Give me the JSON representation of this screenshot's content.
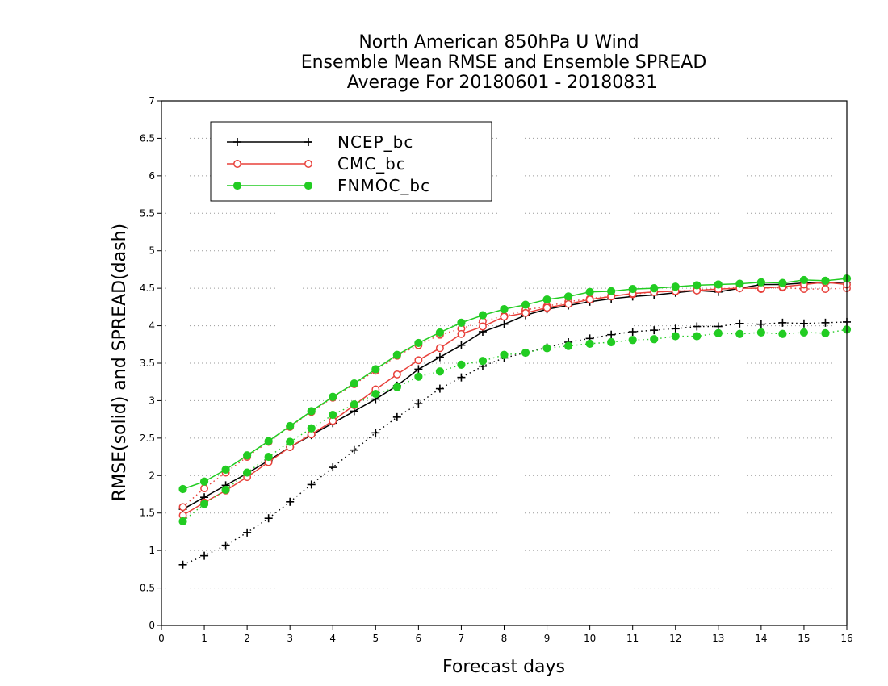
{
  "chart_data": {
    "type": "line",
    "title": [
      "North American 850hPa U Wind",
      "Ensemble Mean RMSE and Ensemble SPREAD",
      "Average For 20180601 - 20180831"
    ],
    "xlabel": "Forecast days",
    "ylabel": "RMSE(solid) and SPREAD(dash)",
    "xlim": [
      0,
      16
    ],
    "ylim": [
      0,
      7
    ],
    "xticks": [
      "0",
      "1",
      "2",
      "3",
      "4",
      "5",
      "6",
      "7",
      "8",
      "9",
      "10",
      "11",
      "12",
      "13",
      "14",
      "15",
      "16"
    ],
    "yticks": [
      "0",
      "0.5",
      "1",
      "1.5",
      "2",
      "2.5",
      "3",
      "3.5",
      "4",
      "4.5",
      "5",
      "5.5",
      "6",
      "6.5",
      "7"
    ],
    "grid": "horizontal dotted",
    "legend_position": "top-left",
    "x": [
      0.5,
      1,
      1.5,
      2,
      2.5,
      3,
      3.5,
      4,
      4.5,
      5,
      5.5,
      6,
      6.5,
      7,
      7.5,
      8,
      8.5,
      9,
      9.5,
      10,
      10.5,
      11,
      11.5,
      12,
      12.5,
      13,
      13.5,
      14,
      14.5,
      15,
      15.5,
      16
    ],
    "series": [
      {
        "name": "NCEP_bc",
        "color": "#000000",
        "marker": "plus",
        "rmse": [
          1.55,
          1.71,
          1.87,
          2.03,
          2.2,
          2.38,
          2.54,
          2.7,
          2.86,
          3.02,
          3.2,
          3.42,
          3.58,
          3.74,
          3.92,
          4.02,
          4.14,
          4.22,
          4.27,
          4.32,
          4.36,
          4.39,
          4.41,
          4.44,
          4.47,
          4.45,
          4.5,
          4.55,
          4.55,
          4.57,
          4.57,
          4.58
        ],
        "spread": [
          0.81,
          0.93,
          1.07,
          1.24,
          1.43,
          1.65,
          1.88,
          2.11,
          2.34,
          2.57,
          2.78,
          2.96,
          3.16,
          3.31,
          3.46,
          3.57,
          3.64,
          3.71,
          3.78,
          3.83,
          3.88,
          3.92,
          3.94,
          3.96,
          3.99,
          3.99,
          4.03,
          4.02,
          4.04,
          4.03,
          4.04,
          4.05
        ]
      },
      {
        "name": "CMC_bc",
        "color": "#e8403a",
        "marker": "open-circle",
        "rmse": [
          1.47,
          1.64,
          1.8,
          1.98,
          2.18,
          2.38,
          2.55,
          2.73,
          2.94,
          3.15,
          3.35,
          3.54,
          3.7,
          3.89,
          3.99,
          4.12,
          4.17,
          4.24,
          4.29,
          4.35,
          4.39,
          4.43,
          4.45,
          4.46,
          4.47,
          4.49,
          4.5,
          4.5,
          4.52,
          4.55,
          4.58,
          4.55
        ],
        "spread": [
          1.58,
          1.83,
          2.04,
          2.25,
          2.45,
          2.65,
          2.85,
          3.04,
          3.22,
          3.4,
          3.6,
          3.74,
          3.88,
          3.96,
          4.06,
          4.13,
          4.21,
          4.26,
          4.32,
          4.36,
          4.4,
          4.42,
          4.45,
          4.46,
          4.48,
          4.49,
          4.51,
          4.49,
          4.51,
          4.49,
          4.49,
          4.5
        ]
      },
      {
        "name": "FNMOC_bc",
        "color": "#22cc22",
        "marker": "filled-circle",
        "rmse": [
          1.82,
          1.92,
          2.08,
          2.27,
          2.46,
          2.66,
          2.86,
          3.05,
          3.23,
          3.42,
          3.61,
          3.77,
          3.91,
          4.04,
          4.14,
          4.22,
          4.28,
          4.35,
          4.39,
          4.45,
          4.46,
          4.49,
          4.5,
          4.52,
          4.54,
          4.55,
          4.56,
          4.58,
          4.57,
          4.61,
          4.6,
          4.63
        ],
        "spread": [
          1.39,
          1.62,
          1.81,
          2.04,
          2.25,
          2.45,
          2.63,
          2.81,
          2.95,
          3.09,
          3.18,
          3.32,
          3.39,
          3.48,
          3.53,
          3.61,
          3.64,
          3.7,
          3.73,
          3.76,
          3.78,
          3.81,
          3.82,
          3.86,
          3.86,
          3.9,
          3.89,
          3.91,
          3.89,
          3.91,
          3.9,
          3.95
        ]
      }
    ]
  }
}
